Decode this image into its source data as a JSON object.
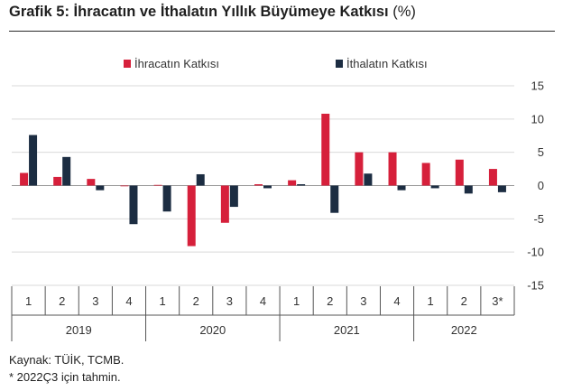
{
  "title": {
    "main": "Grafik 5: İhracatın ve İthalatın Yıllık Büyümeye Katkısı",
    "unit": "(%)"
  },
  "chart_data": {
    "type": "bar",
    "categories": [
      "1",
      "2",
      "3",
      "4",
      "1",
      "2",
      "3",
      "4",
      "1",
      "2",
      "3",
      "4",
      "1",
      "2",
      "3*"
    ],
    "years": [
      {
        "label": "2019",
        "span": 4
      },
      {
        "label": "2020",
        "span": 4
      },
      {
        "label": "2021",
        "span": 4
      },
      {
        "label": "2022",
        "span": 3
      }
    ],
    "series": [
      {
        "name": "İhracatın Katkısı",
        "color": "#d6203b",
        "values": [
          1.9,
          1.3,
          1.0,
          0.0,
          0.1,
          -9.1,
          -5.6,
          0.2,
          0.8,
          10.8,
          5.0,
          5.0,
          3.4,
          3.9,
          2.5
        ]
      },
      {
        "name": "İthalatın Katkısı",
        "color": "#1c2d42",
        "values": [
          7.6,
          4.3,
          -0.7,
          -5.8,
          -3.9,
          1.7,
          -3.2,
          -0.4,
          0.2,
          -4.1,
          1.8,
          -0.7,
          -0.4,
          -1.2,
          -1.0
        ]
      }
    ],
    "yticks": [
      15,
      10,
      5,
      0,
      -5,
      -10,
      -15
    ],
    "ylim": [
      -15,
      15
    ],
    "grid": true,
    "legend": "top"
  },
  "footer": {
    "source": "Kaynak: TÜİK, TCMB.",
    "note": "* 2022Ç3 için tahmin."
  }
}
